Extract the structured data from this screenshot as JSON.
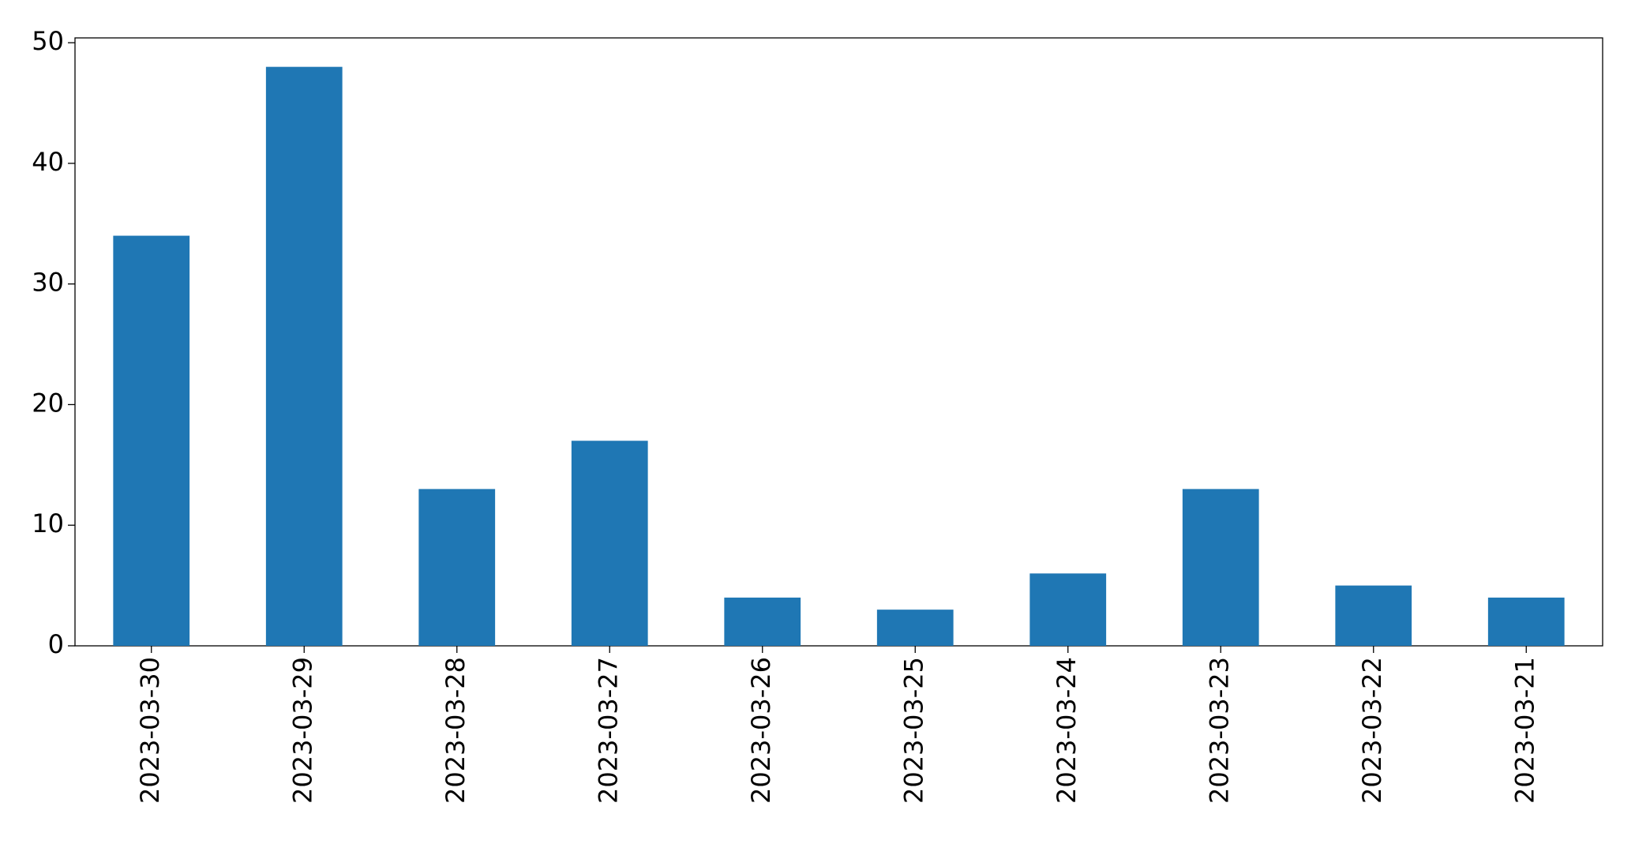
{
  "chart_data": {
    "type": "bar",
    "categories": [
      "2023-03-30",
      "2023-03-29",
      "2023-03-28",
      "2023-03-27",
      "2023-03-26",
      "2023-03-25",
      "2023-03-24",
      "2023-03-23",
      "2023-03-22",
      "2023-03-21"
    ],
    "values": [
      34,
      48,
      13,
      17,
      4,
      3,
      6,
      13,
      5,
      4
    ],
    "color": "#1f77b4",
    "ylim": [
      0,
      50.4
    ],
    "yticks": [
      0,
      10,
      20,
      30,
      40,
      50
    ],
    "grid": false
  }
}
